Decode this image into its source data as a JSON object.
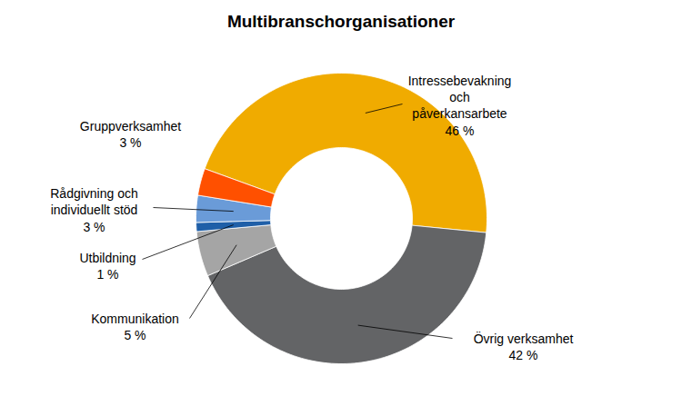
{
  "chart_data": {
    "type": "donut",
    "title": "Multibranschorganisationer",
    "categories": [
      "Intressebevakning och påverkansarbete",
      "Övrig verksamhet",
      "Kommunikation",
      "Utbildning",
      "Rådgivning och individuellt stöd",
      "Gruppverksamhet"
    ],
    "values": [
      46,
      42,
      5,
      1,
      3,
      3
    ],
    "value_labels": [
      "46 %",
      "42 %",
      "5 %",
      "1 %",
      "3 %",
      "3 %"
    ],
    "colors": [
      "#f0ab00",
      "#636466",
      "#a5a5a5",
      "#1f5fa8",
      "#6a9bd8",
      "#ff5000"
    ],
    "data_labels": true
  }
}
